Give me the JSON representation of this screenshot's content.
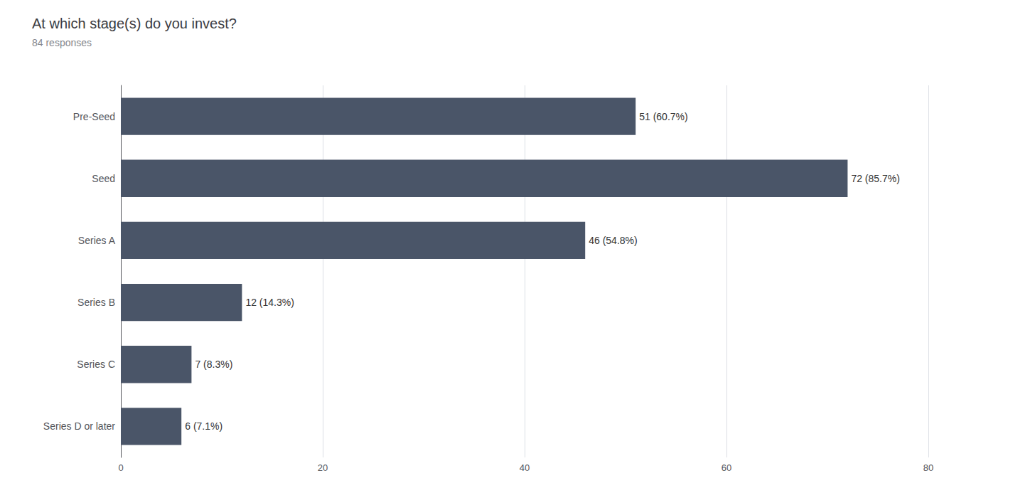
{
  "chart_data": {
    "type": "bar",
    "orientation": "horizontal",
    "title": "At which stage(s) do you invest?",
    "subtitle": "84 responses",
    "categories": [
      "Pre-Seed",
      "Seed",
      "Series A",
      "Series B",
      "Series C",
      "Series D or later"
    ],
    "values": [
      51,
      72,
      46,
      12,
      7,
      6
    ],
    "value_labels": [
      "51 (60.7%)",
      "72 (85.7%)",
      "46 (54.8%)",
      "12 (14.3%)",
      "7 (8.3%)",
      "6 (7.1%)"
    ],
    "data_labels": true,
    "color": "#4a5568",
    "xlim": [
      0,
      80
    ],
    "xticks": [
      0,
      20,
      40,
      60,
      80
    ],
    "grid": true
  }
}
